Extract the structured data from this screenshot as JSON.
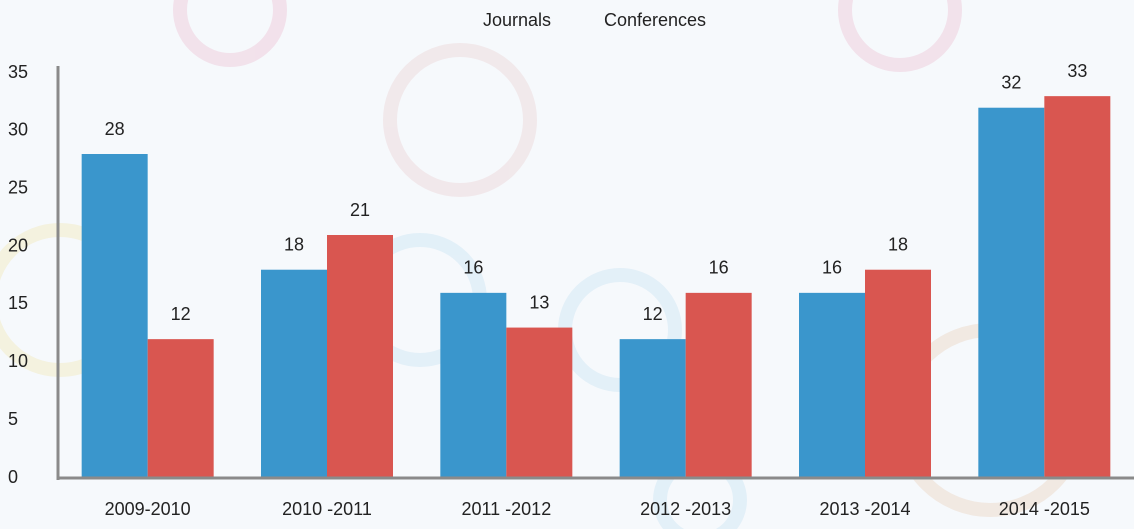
{
  "chart_data": {
    "type": "bar",
    "categories": [
      "2009-2010",
      "2010 -2011",
      "2011 -2012",
      "2012 -2013",
      "2013 -2014",
      "2014 -2015"
    ],
    "series": [
      {
        "name": "Journals",
        "color": "#3a96cc",
        "values": [
          28,
          18,
          16,
          12,
          16,
          32
        ]
      },
      {
        "name": "Conferences",
        "color": "#d95650",
        "values": [
          12,
          21,
          13,
          16,
          18,
          33
        ]
      }
    ],
    "ylim": [
      0,
      35
    ],
    "yticks": [
      0,
      5,
      10,
      15,
      20,
      25,
      30,
      35
    ],
    "grid": false
  }
}
